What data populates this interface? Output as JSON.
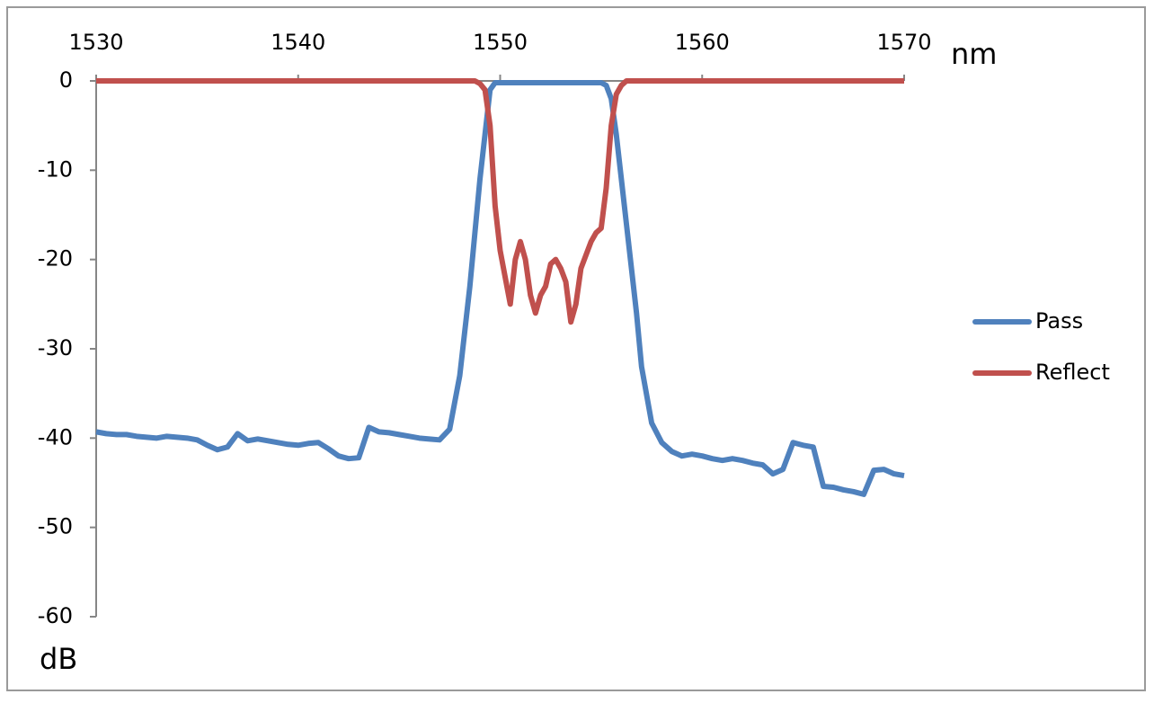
{
  "chart_data": {
    "type": "line",
    "x_label": "nm",
    "y_label": "dB",
    "x_axis_position": "top",
    "legend_position": "right",
    "grid": false,
    "xlim": [
      1530,
      1570
    ],
    "xticks": [
      1530,
      1540,
      1550,
      1560,
      1570
    ],
    "ylim": [
      -60,
      0
    ],
    "yticks": [
      -60,
      -50,
      -40,
      -30,
      -20,
      -10,
      0
    ],
    "x": [
      1530,
      1530.5,
      1531,
      1531.5,
      1532,
      1532.5,
      1533,
      1533.5,
      1534,
      1534.5,
      1535,
      1535.5,
      1536,
      1536.5,
      1537,
      1537.5,
      1538,
      1538.5,
      1539,
      1539.5,
      1540,
      1540.5,
      1541,
      1541.5,
      1542,
      1542.5,
      1543,
      1543.5,
      1544,
      1544.5,
      1545,
      1545.5,
      1546,
      1546.5,
      1547,
      1547.5,
      1548,
      1548.25,
      1548.5,
      1548.75,
      1549,
      1549.25,
      1549.5,
      1549.75,
      1550,
      1550.25,
      1550.5,
      1550.75,
      1551,
      1551.25,
      1551.5,
      1551.75,
      1552,
      1552.25,
      1552.5,
      1552.75,
      1553,
      1553.25,
      1553.5,
      1553.75,
      1554,
      1554.25,
      1554.5,
      1554.75,
      1555,
      1555.25,
      1555.5,
      1555.75,
      1556,
      1556.25,
      1556.5,
      1556.75,
      1557,
      1557.5,
      1558,
      1558.5,
      1559,
      1559.5,
      1560,
      1560.5,
      1561,
      1561.5,
      1562,
      1562.5,
      1563,
      1563.5,
      1564,
      1564.5,
      1565,
      1565.5,
      1566,
      1566.5,
      1567,
      1567.5,
      1568,
      1568.5,
      1569,
      1569.5,
      1570
    ],
    "series": [
      {
        "name": "Pass",
        "color": "#4f81bd",
        "values": [
          -39.3,
          -39.5,
          -39.6,
          -39.6,
          -39.8,
          -39.9,
          -40,
          -39.8,
          -39.9,
          -40,
          -40.2,
          -40.8,
          -41.3,
          -41,
          -39.5,
          -40.3,
          -40.1,
          -40.3,
          -40.5,
          -40.7,
          -40.8,
          -40.6,
          -40.5,
          -41.2,
          -42,
          -42.3,
          -42.2,
          -38.8,
          -39.3,
          -39.4,
          -39.6,
          -39.8,
          -40,
          -40.1,
          -40.2,
          -39,
          -33,
          -28,
          -23,
          -17,
          -11,
          -6,
          -1,
          -0.2,
          -0.2,
          -0.2,
          -0.2,
          -0.2,
          -0.2,
          -0.2,
          -0.2,
          -0.2,
          -0.2,
          -0.2,
          -0.2,
          -0.2,
          -0.2,
          -0.2,
          -0.2,
          -0.2,
          -0.2,
          -0.2,
          -0.2,
          -0.2,
          -0.2,
          -0.5,
          -2,
          -6,
          -11,
          -16,
          -21,
          -26,
          -32,
          -38.3,
          -40.5,
          -41.5,
          -42,
          -41.8,
          -42,
          -42.3,
          -42.5,
          -42.3,
          -42.5,
          -42.8,
          -43,
          -44,
          -43.5,
          -40.5,
          -40.8,
          -41,
          -45.4,
          -45.5,
          -45.8,
          -46,
          -46.3,
          -43.6,
          -43.5,
          -44,
          -44.2
        ]
      },
      {
        "name": "Reflect",
        "color": "#c0504d",
        "values": [
          0,
          0,
          0,
          0,
          0,
          0,
          0,
          0,
          0,
          0,
          0,
          0,
          0,
          0,
          0,
          0,
          0,
          0,
          0,
          0,
          0,
          0,
          0,
          0,
          0,
          0,
          0,
          0,
          0,
          0,
          0,
          0,
          0,
          0,
          0,
          0,
          0,
          0,
          0,
          0,
          -0.3,
          -1,
          -5,
          -14,
          -19,
          -22,
          -25,
          -20,
          -18,
          -20,
          -24,
          -26,
          -24,
          -23,
          -20.5,
          -20,
          -21,
          -22.5,
          -27,
          -25,
          -21,
          -19.5,
          -18,
          -17,
          -16.5,
          -12,
          -5,
          -1.5,
          -0.5,
          0,
          0,
          0,
          0,
          0,
          0,
          0,
          0,
          0,
          0,
          0,
          0,
          0,
          0,
          0,
          0,
          0,
          0,
          0,
          0,
          0,
          0,
          0,
          0,
          0,
          0,
          0,
          0,
          0,
          0
        ]
      }
    ]
  }
}
